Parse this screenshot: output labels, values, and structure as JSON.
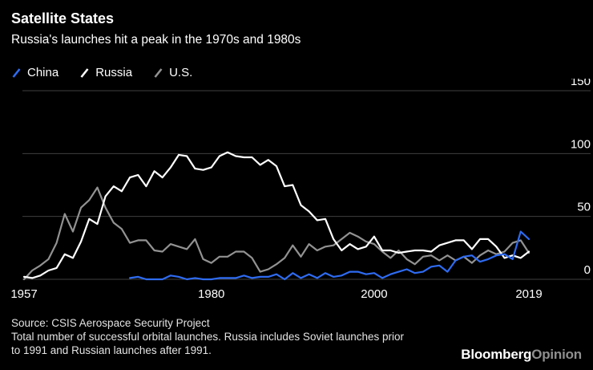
{
  "header": {
    "title": "Satellite States",
    "subtitle": "Russia's launches hit a peak in the 1970s and 1980s"
  },
  "chart_data": {
    "type": "line",
    "title": "Satellite States",
    "subtitle": "Russia's launches hit a peak in the 1970s and 1980s",
    "ylabel": "",
    "xlabel": "",
    "ylim": [
      0,
      150
    ],
    "x_start": 1957,
    "x_end": 2019,
    "x_ticks": [
      1957,
      1980,
      2000,
      2019
    ],
    "y_ticks": [
      0,
      50,
      100,
      150
    ],
    "grid": "horizontal",
    "legend_position": "top-left",
    "colors": {
      "grid": "#3f3f3f",
      "tick_text": "#ffffff",
      "background": "#000000"
    },
    "series": [
      {
        "name": "China",
        "color": "#2e6bf2",
        "start_year": 1970,
        "values": [
          1,
          2,
          0,
          0,
          0,
          3,
          2,
          0,
          1,
          0,
          0,
          1,
          1,
          1,
          3,
          1,
          2,
          2,
          4,
          0,
          5,
          1,
          4,
          1,
          5,
          2,
          3,
          6,
          6,
          4,
          5,
          1,
          4,
          6,
          8,
          5,
          6,
          10,
          11,
          6,
          15,
          18,
          19,
          14,
          16,
          19,
          20,
          16,
          38,
          32
        ]
      },
      {
        "name": "Russia",
        "color": "#ffffff",
        "start_year": 1957,
        "values": [
          2,
          1,
          3,
          7,
          9,
          20,
          17,
          30,
          48,
          44,
          66,
          74,
          70,
          81,
          83,
          74,
          86,
          81,
          89,
          99,
          98,
          88,
          87,
          89,
          98,
          101,
          98,
          97,
          97,
          91,
          95,
          90,
          74,
          75,
          59,
          54,
          47,
          48,
          32,
          23,
          28,
          24,
          26,
          34,
          23,
          23,
          21,
          22,
          23,
          23,
          22,
          27,
          29,
          31,
          31,
          24,
          32,
          32,
          26,
          17,
          19,
          17,
          22
        ]
      },
      {
        "name": "U.S.",
        "color": "#929292",
        "start_year": 1957,
        "values": [
          0,
          7,
          11,
          16,
          29,
          52,
          38,
          57,
          63,
          73,
          57,
          45,
          40,
          29,
          31,
          31,
          23,
          22,
          28,
          26,
          24,
          32,
          16,
          13,
          18,
          18,
          22,
          22,
          17,
          6,
          8,
          12,
          17,
          27,
          18,
          28,
          23,
          26,
          27,
          32,
          37,
          34,
          30,
          28,
          22,
          17,
          23,
          16,
          12,
          18,
          19,
          15,
          19,
          15,
          18,
          13,
          19,
          23,
          20,
          22,
          29,
          31,
          21
        ]
      }
    ]
  },
  "footer": {
    "source": "Source: CSIS Aerospace Security Project",
    "note_line1": "Total number of successful orbital launches. Russia includes Soviet launches prior",
    "note_line2": "to 1991 and Russian launches after 1991.",
    "brand_bloomberg": "Bloomberg",
    "brand_opinion": "Opinion"
  }
}
